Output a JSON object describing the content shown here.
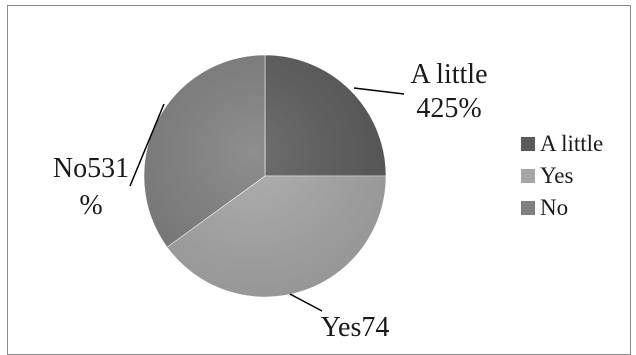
{
  "chart_data": {
    "type": "pie",
    "categories": [
      "A little",
      "Yes",
      "No"
    ],
    "values": [
      25,
      40,
      35
    ],
    "colors": [
      "#5b5b5b",
      "#a6a6a6",
      "#7f7f7f"
    ],
    "legend_position": "right",
    "data_labels": [
      {
        "line1": "A little",
        "line2": "425%"
      },
      {
        "line1": "Yes74",
        "line2": ""
      },
      {
        "line1": "No531",
        "line2": "%"
      }
    ]
  }
}
